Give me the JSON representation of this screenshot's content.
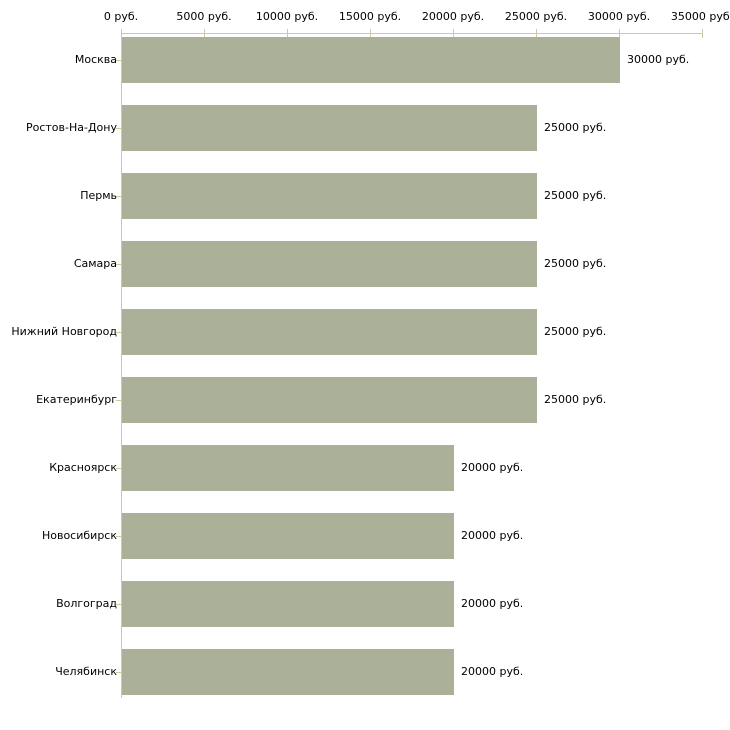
{
  "chart_data": {
    "type": "bar",
    "orientation": "horizontal",
    "title": "",
    "categories": [
      "Москва",
      "Ростов-На-Дону",
      "Пермь",
      "Самара",
      "Нижний Новгород",
      "Екатеринбург",
      "Красноярск",
      "Новосибирск",
      "Волгоград",
      "Челябинск"
    ],
    "values": [
      30000,
      25000,
      25000,
      25000,
      25000,
      25000,
      20000,
      20000,
      20000,
      20000
    ],
    "value_labels": [
      "30000 руб.",
      "25000 руб.",
      "25000 руб.",
      "25000 руб.",
      "25000 руб.",
      "25000 руб.",
      "20000 руб.",
      "20000 руб.",
      "20000 руб.",
      "20000 руб."
    ],
    "x_axis": {
      "ticks": [
        0,
        5000,
        10000,
        15000,
        20000,
        25000,
        30000,
        35000
      ],
      "tick_labels": [
        "0 руб.",
        "5000 руб.",
        "10000 руб.",
        "15000 руб.",
        "20000 руб.",
        "25000 руб.",
        "30000 руб.",
        "35000 руб."
      ],
      "min": 0,
      "max": 35000,
      "unit": "руб.",
      "position": "top"
    },
    "xlabel": "",
    "ylabel": "",
    "xlim": [
      0,
      35000
    ],
    "layout": {
      "grid": false,
      "legend": false,
      "value_labels_position": "right-of-bar",
      "bar_color": "#abb199",
      "axis_color": "#c6c6c6",
      "tick_color": "#cdc9a0",
      "text_color": "#000000",
      "background_color": "#ffffff"
    }
  }
}
